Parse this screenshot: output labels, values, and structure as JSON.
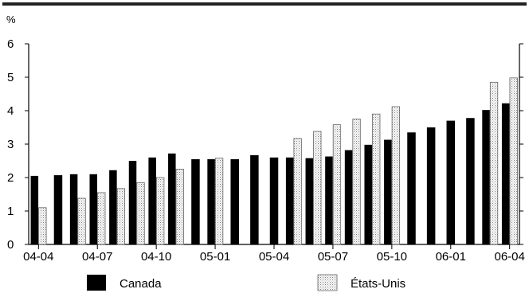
{
  "chart_data": {
    "type": "bar",
    "y_unit_label": "%",
    "ylim": [
      0,
      6
    ],
    "yticks": [
      0,
      1,
      2,
      3,
      4,
      5,
      6
    ],
    "grid": false,
    "legend_position": "bottom",
    "categories": [
      "04-04",
      "04-05",
      "04-06",
      "04-07",
      "04-08",
      "04-09",
      "04-10",
      "04-11",
      "04-12",
      "05-01",
      "05-02",
      "05-03",
      "05-04",
      "05-05",
      "05-06",
      "05-07",
      "05-08",
      "05-09",
      "05-10",
      "05-11",
      "05-12",
      "06-01",
      "06-02",
      "06-03",
      "06-04"
    ],
    "x_tick_labels": [
      "04-04",
      "04-07",
      "04-10",
      "05-01",
      "05-04",
      "05-07",
      "05-10",
      "06-01",
      "06-04"
    ],
    "series": [
      {
        "name": "Canada",
        "color": "#000000",
        "values": [
          2.05,
          2.07,
          2.1,
          2.1,
          2.22,
          2.5,
          2.6,
          2.72,
          2.55,
          2.55,
          2.55,
          2.67,
          2.6,
          2.6,
          2.58,
          2.63,
          2.82,
          2.98,
          3.13,
          3.35,
          3.5,
          3.7,
          3.78,
          4.02,
          4.22
        ]
      },
      {
        "name": "États-Unis",
        "color": "#ffffff",
        "values": [
          1.1,
          null,
          1.38,
          1.55,
          1.67,
          1.85,
          2.0,
          2.25,
          null,
          2.58,
          null,
          null,
          null,
          3.17,
          3.38,
          3.58,
          3.75,
          3.9,
          4.12,
          null,
          null,
          null,
          null,
          4.85,
          4.98
        ]
      }
    ]
  }
}
